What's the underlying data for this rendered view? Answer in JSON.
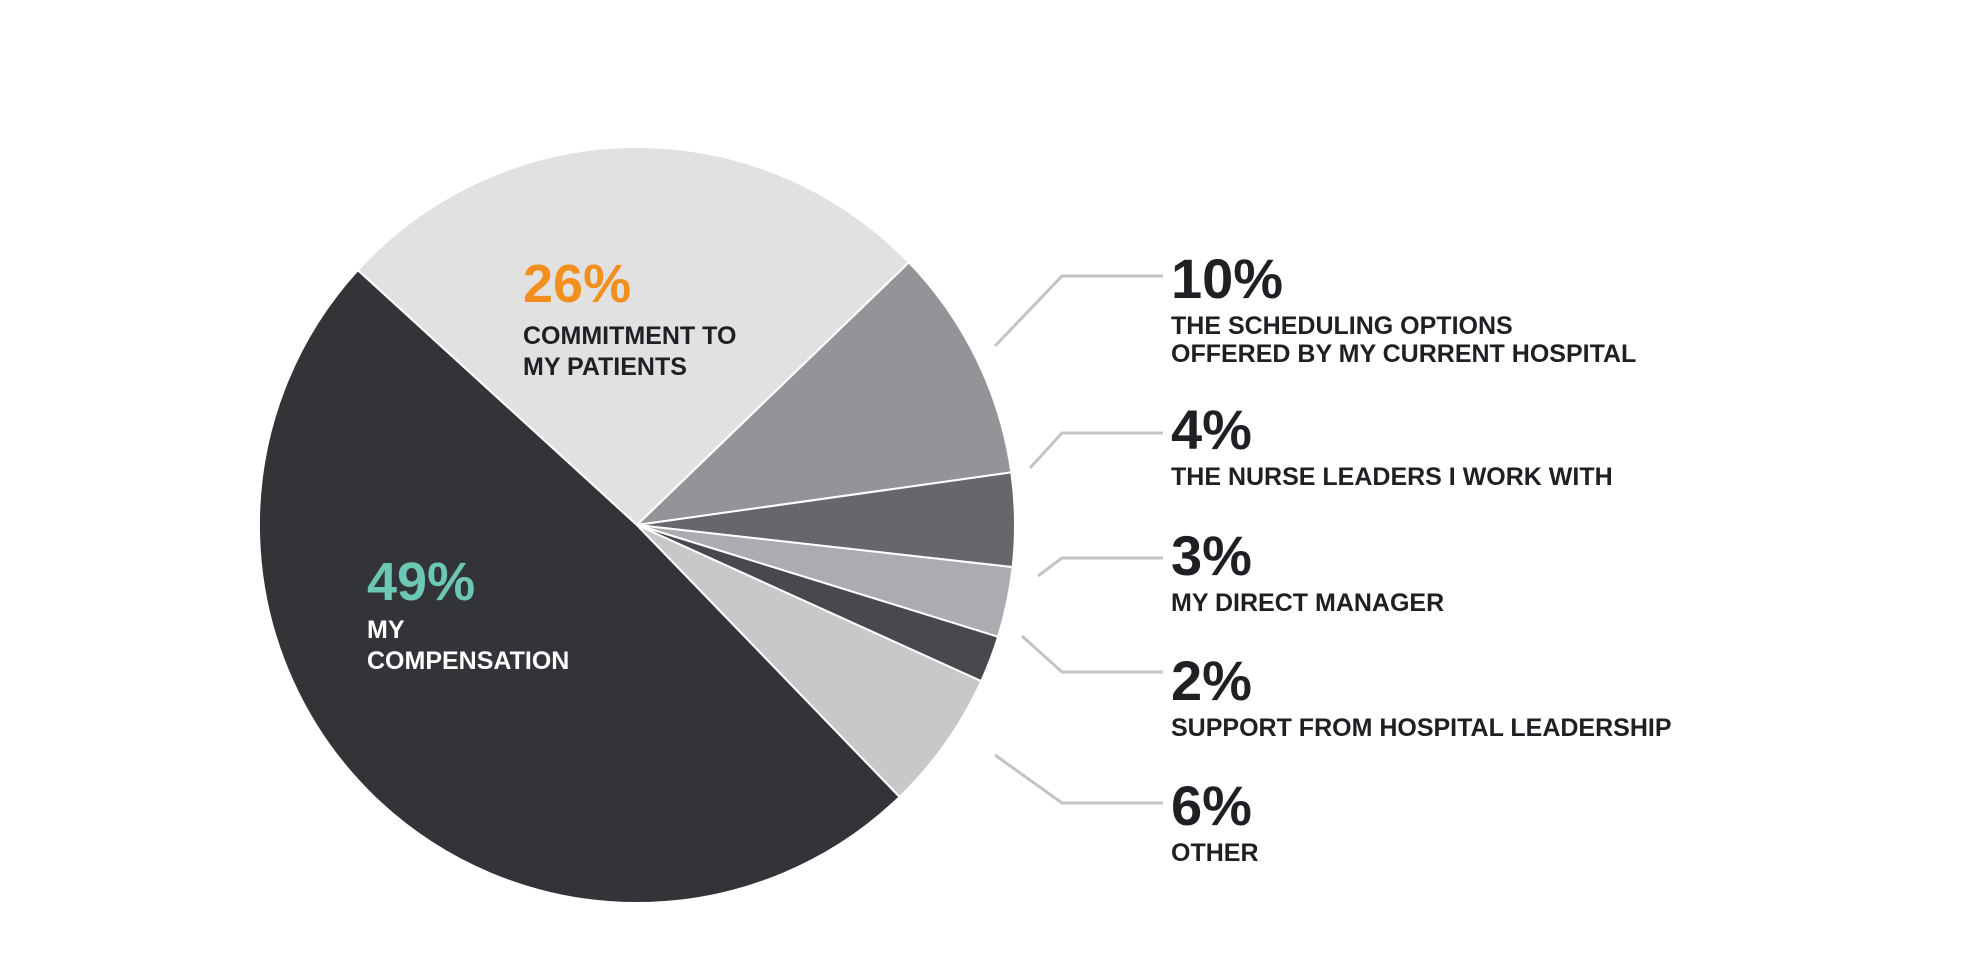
{
  "chart_data": {
    "type": "pie",
    "slices": [
      {
        "label_lines": [
          "MY",
          "COMPENSATION"
        ],
        "value": 49,
        "value_label": "49%",
        "color": "#333438",
        "label_color": "#ffffff",
        "pct_color": "#6cc7b4"
      },
      {
        "label_lines": [
          "COMMITMENT TO",
          "MY PATIENTS"
        ],
        "value": 26,
        "value_label": "26%",
        "color": "#e1e1e2",
        "label_color": "#1f2024",
        "pct_color": "#f3901d"
      },
      {
        "label_lines": [
          "THE SCHEDULING OPTIONS",
          "OFFERED BY MY CURRENT HOSPITAL"
        ],
        "value": 10,
        "value_label": "10%",
        "color": "#939498"
      },
      {
        "label_lines": [
          "THE NURSE LEADERS I WORK WITH"
        ],
        "value": 4,
        "value_label": "4%",
        "color": "#67676b"
      },
      {
        "label_lines": [
          "MY DIRECT MANAGER"
        ],
        "value": 3,
        "value_label": "3%",
        "color": "#abacaf"
      },
      {
        "label_lines": [
          "SUPPORT FROM HOSPITAL LEADERSHIP"
        ],
        "value": 2,
        "value_label": "2%",
        "color": "#48484d"
      },
      {
        "label_lines": [
          "OTHER"
        ],
        "value": 6,
        "value_label": "6%",
        "color": "#c8c8cb"
      }
    ],
    "leader_line_color": "#c4c4c6"
  }
}
